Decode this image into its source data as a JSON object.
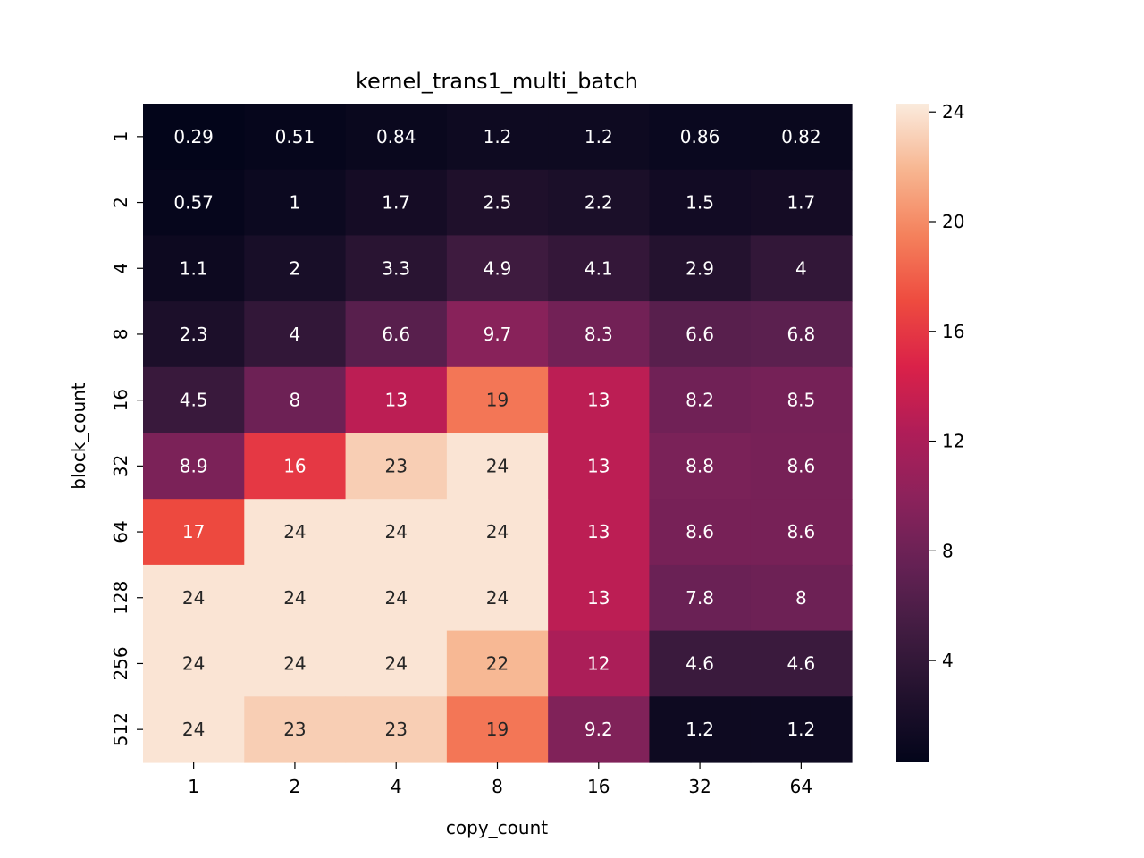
{
  "chart_data": {
    "type": "heatmap",
    "title": "kernel_trans1_multi_batch",
    "xlabel": "copy_count",
    "ylabel": "block_count",
    "x_categories": [
      "1",
      "2",
      "4",
      "8",
      "16",
      "32",
      "64"
    ],
    "y_categories": [
      "1",
      "2",
      "4",
      "8",
      "16",
      "32",
      "64",
      "128",
      "256",
      "512"
    ],
    "values": [
      [
        0.29,
        0.51,
        0.84,
        1.2,
        1.2,
        0.86,
        0.82
      ],
      [
        0.57,
        1,
        1.7,
        2.5,
        2.2,
        1.5,
        1.7
      ],
      [
        1.1,
        2,
        3.3,
        4.9,
        4.1,
        2.9,
        4
      ],
      [
        2.3,
        4,
        6.6,
        9.7,
        8.3,
        6.6,
        6.8
      ],
      [
        4.5,
        8,
        13,
        19,
        13,
        8.2,
        8.5
      ],
      [
        8.9,
        16,
        23,
        24,
        13,
        8.8,
        8.6
      ],
      [
        17,
        24,
        24,
        24,
        13,
        8.6,
        8.6
      ],
      [
        24,
        24,
        24,
        24,
        13,
        7.8,
        8
      ],
      [
        24,
        24,
        24,
        22,
        12,
        4.6,
        4.6
      ],
      [
        24,
        23,
        23,
        19,
        9.2,
        1.2,
        1.2
      ]
    ],
    "colorbar": {
      "ticks": [
        4,
        8,
        12,
        16,
        20,
        24
      ],
      "min": 0.29,
      "max": 24.3,
      "colormap": "rocket"
    },
    "grid": false,
    "legend": "colorbar-right"
  }
}
